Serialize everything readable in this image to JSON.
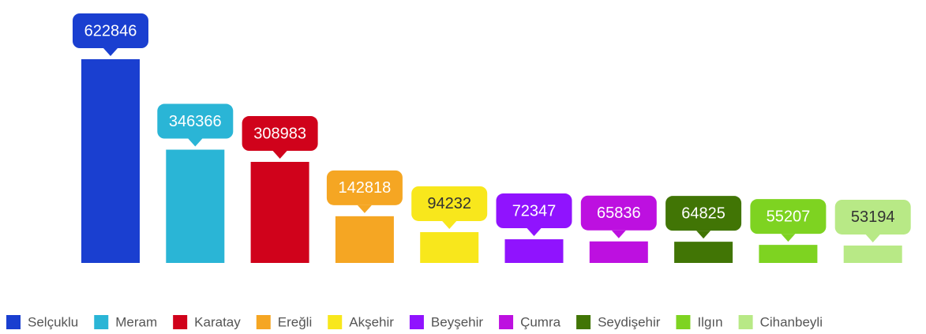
{
  "chart_data": {
    "type": "bar",
    "categories": [
      "Selçuklu",
      "Meram",
      "Karatay",
      "Ereğli",
      "Akşehir",
      "Beyşehir",
      "Çumra",
      "Seydişehir",
      "Ilgın",
      "Cihanbeyli"
    ],
    "values": [
      622846,
      346366,
      308983,
      142818,
      94232,
      72347,
      65836,
      64825,
      55207,
      53194
    ],
    "colors": [
      "#1a3fd0",
      "#2ab5d6",
      "#d0021b",
      "#f5a623",
      "#f8e71c",
      "#9013fe",
      "#bd10e0",
      "#417505",
      "#7ed321",
      "#b8e986"
    ],
    "label_colors": [
      "#ffffff",
      "#ffffff",
      "#ffffff",
      "#ffffff",
      "#333333",
      "#ffffff",
      "#ffffff",
      "#ffffff",
      "#ffffff",
      "#333333"
    ],
    "legend": "bottom"
  }
}
